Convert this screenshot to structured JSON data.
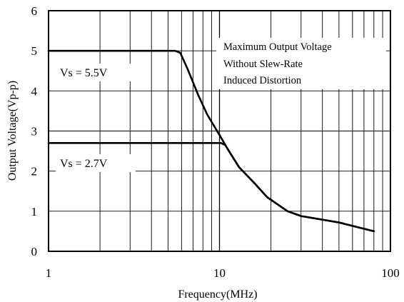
{
  "chart_data": {
    "type": "line",
    "xscale": "log",
    "xlim": [
      1,
      100
    ],
    "ylim": [
      0,
      6
    ],
    "grid": true,
    "xlabel": "Frequency(MHz)",
    "ylabel": "Output Voltage(Vp-p)",
    "x_ticks": [
      "1",
      "10",
      "100"
    ],
    "y_ticks": [
      "0",
      "1",
      "2",
      "3",
      "4",
      "5",
      "6"
    ],
    "annotation": [
      "Maximum Output Voltage",
      "Without Slew-Rate",
      "Induced Distortion"
    ],
    "series": [
      {
        "name": "Vs = 5.5V",
        "points": [
          [
            1,
            5.0
          ],
          [
            5.0,
            5.0
          ],
          [
            5.5,
            5.0
          ],
          [
            5.9,
            4.95
          ],
          [
            6.5,
            4.55
          ],
          [
            7.5,
            3.9
          ],
          [
            8.5,
            3.4
          ],
          [
            10,
            2.9
          ],
          [
            11,
            2.6
          ],
          [
            13,
            2.1
          ],
          [
            16,
            1.7
          ],
          [
            19,
            1.35
          ],
          [
            25,
            1.0
          ],
          [
            30,
            0.88
          ],
          [
            50,
            0.72
          ],
          [
            80,
            0.5
          ]
        ]
      },
      {
        "name": "Vs = 2.7V",
        "points": [
          [
            1,
            2.7
          ],
          [
            10.2,
            2.7
          ],
          [
            10.8,
            2.65
          ],
          [
            13,
            2.1
          ],
          [
            16,
            1.7
          ],
          [
            19,
            1.35
          ],
          [
            25,
            1.0
          ],
          [
            30,
            0.88
          ],
          [
            50,
            0.72
          ],
          [
            80,
            0.5
          ]
        ]
      }
    ]
  }
}
